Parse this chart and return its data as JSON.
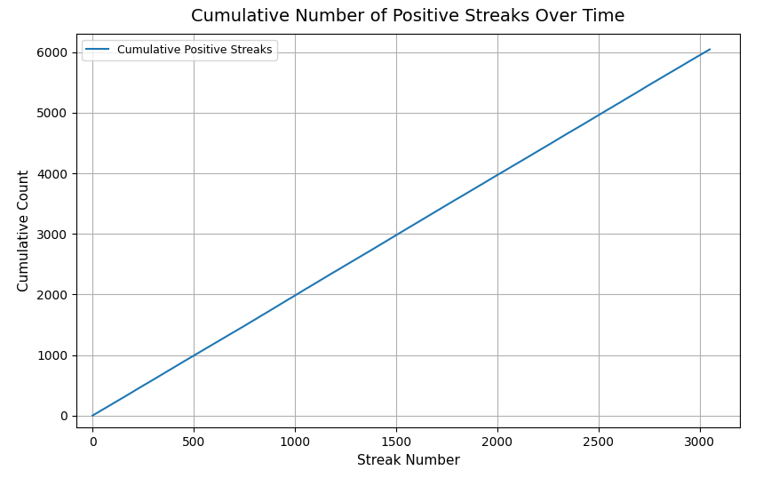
{
  "title": "Cumulative Number of Positive Streaks Over Time",
  "xlabel": "Streak Number",
  "ylabel": "Cumulative Count",
  "legend_label": "Cumulative Positive Streaks",
  "x_start": 0,
  "x_end": 3050,
  "num_points": 3051,
  "line_color": "#1f77b4",
  "line_width": 1.5,
  "xlim": [
    -80,
    3200
  ],
  "ylim": [
    -200,
    6300
  ],
  "xticks": [
    0,
    500,
    1000,
    1500,
    2000,
    2500,
    3000
  ],
  "yticks": [
    0,
    1000,
    2000,
    3000,
    4000,
    5000,
    6000
  ],
  "title_fontsize": 14,
  "label_fontsize": 11,
  "tick_fontsize": 10,
  "background_color": "#ffffff",
  "grid": true,
  "grid_color": "#b0b0b0",
  "grid_linewidth": 0.8
}
